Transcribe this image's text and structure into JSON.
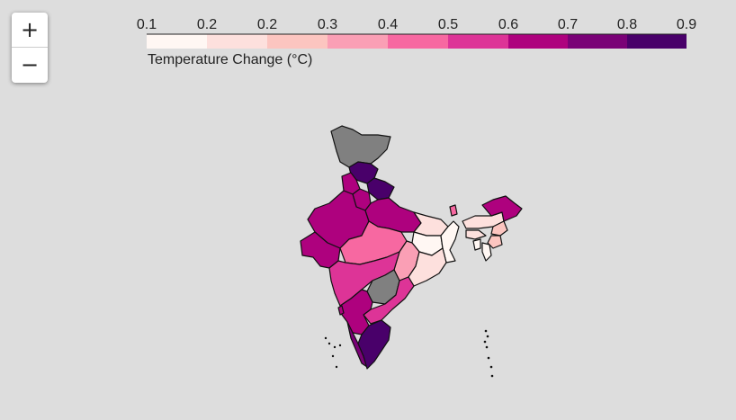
{
  "map_controls": {
    "zoom_in": "+",
    "zoom_out": "−"
  },
  "legend": {
    "title": "Temperature Change (°C)",
    "ticks": [
      "0.1",
      "0.2",
      "0.2",
      "0.3",
      "0.4",
      "0.5",
      "0.6",
      "0.7",
      "0.8",
      "0.9"
    ],
    "scale": "RdPu",
    "range": [
      0.1,
      0.9
    ]
  },
  "colors": {
    "no_data": "#808080",
    "background": "#dddddd",
    "ramp": [
      "#fff7f3",
      "#fde0dd",
      "#fcc5c0",
      "#fa9fb5",
      "#f768a1",
      "#dd3497",
      "#ae017e",
      "#7a0177",
      "#49006a"
    ]
  },
  "regions": [
    {
      "name": "Jammu and Kashmir",
      "value": null
    },
    {
      "name": "Himachal Pradesh",
      "value": 0.85
    },
    {
      "name": "Punjab",
      "value": 0.7
    },
    {
      "name": "Uttarakhand",
      "value": 0.85
    },
    {
      "name": "Haryana",
      "value": 0.65
    },
    {
      "name": "Rajasthan",
      "value": 0.65
    },
    {
      "name": "Uttar Pradesh",
      "value": 0.65
    },
    {
      "name": "Gujarat",
      "value": 0.65
    },
    {
      "name": "Madhya Pradesh",
      "value": 0.5
    },
    {
      "name": "Bihar",
      "value": 0.2
    },
    {
      "name": "Jharkhand",
      "value": 0.15
    },
    {
      "name": "West Bengal",
      "value": 0.1
    },
    {
      "name": "Chhattisgarh",
      "value": 0.4
    },
    {
      "name": "Odisha",
      "value": 0.25
    },
    {
      "name": "Maharashtra",
      "value": 0.55
    },
    {
      "name": "Telangana",
      "value": null
    },
    {
      "name": "Andhra Pradesh",
      "value": 0.6
    },
    {
      "name": "Karnataka",
      "value": 0.7
    },
    {
      "name": "Goa",
      "value": 0.65
    },
    {
      "name": "Kerala",
      "value": 0.75
    },
    {
      "name": "Tamil Nadu",
      "value": 0.85
    },
    {
      "name": "Sikkim",
      "value": 0.5
    },
    {
      "name": "Assam",
      "value": 0.25
    },
    {
      "name": "Arunachal Pradesh",
      "value": 0.65
    },
    {
      "name": "Meghalaya",
      "value": 0.2
    },
    {
      "name": "Nagaland",
      "value": 0.3
    },
    {
      "name": "Manipur",
      "value": 0.3
    },
    {
      "name": "Tripura",
      "value": 0.1
    },
    {
      "name": "Mizoram",
      "value": 0.1
    }
  ]
}
